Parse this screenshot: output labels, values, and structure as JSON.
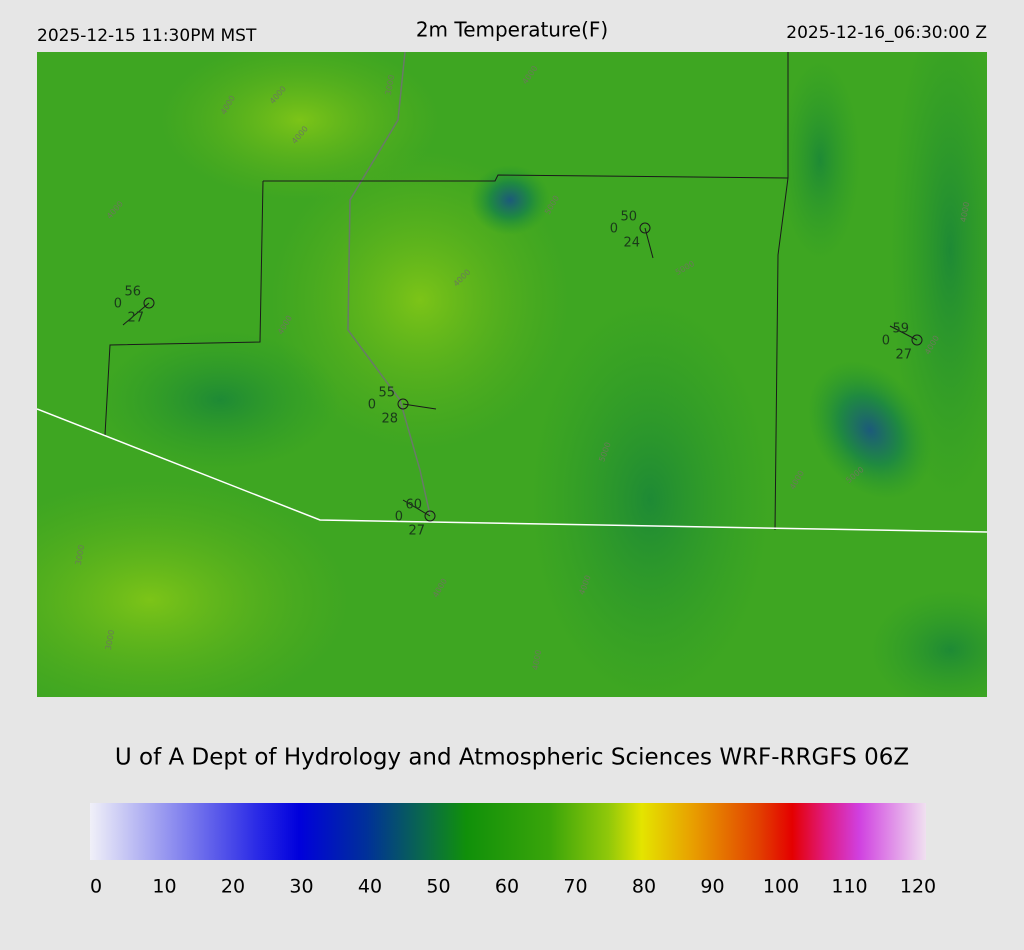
{
  "header": {
    "local_time": "2025-12-15 11:30PM MST",
    "title": "2m Temperature(F)",
    "valid_time": "2025-12-16_06:30:00 Z"
  },
  "stations": [
    {
      "temperature": 56,
      "wind": 0,
      "dewpoint": 27
    },
    {
      "temperature": 55,
      "wind": 0,
      "dewpoint": 28
    },
    {
      "temperature": 60,
      "wind": 0,
      "dewpoint": 27
    },
    {
      "temperature": 50,
      "wind": 0,
      "dewpoint": 24
    },
    {
      "temperature": 59,
      "wind": 0,
      "dewpoint": 27
    }
  ],
  "contour_labels": [
    "4000",
    "4000",
    "3000",
    "4000",
    "4000",
    "4000",
    "4000",
    "4000",
    "5000",
    "5000",
    "5000",
    "4000",
    "5000",
    "4000",
    "4000",
    "3000",
    "3000",
    "4000",
    "4000",
    "4000"
  ],
  "footer": {
    "credit": "U of A Dept of Hydrology and Atmospheric Sciences WRF-RRGFS 06Z"
  },
  "colorbar": {
    "ticks": [
      0,
      10,
      20,
      30,
      40,
      50,
      60,
      70,
      80,
      90,
      100,
      110,
      120
    ]
  }
}
